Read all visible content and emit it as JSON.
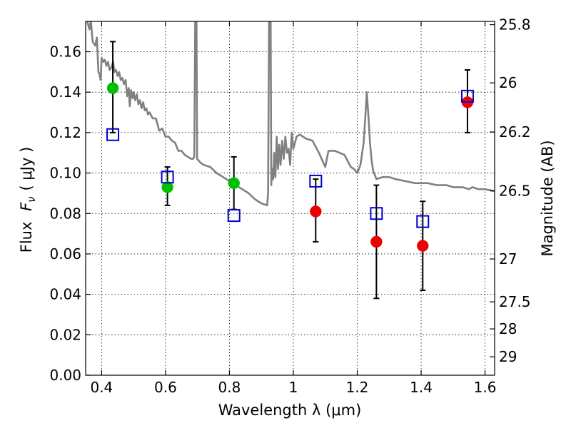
{
  "chart_data": {
    "type": "scatter",
    "xlabel": "Wavelength  λ (μm)",
    "ylabel_prefix": "Flux",
    "ylabel_symbol": "F",
    "ylabel_subscript": "ν",
    "ylabel_unit": "( μJy )",
    "y2label": "Magnitude (AB)",
    "xlim": [
      0.35,
      1.63
    ],
    "ylim": [
      0.0,
      0.175
    ],
    "grid": true,
    "x_ticks": [
      {
        "value": 0.4,
        "label": "0.4"
      },
      {
        "value": 0.6,
        "label": "0.6"
      },
      {
        "value": 0.8,
        "label": "0.8"
      },
      {
        "value": 1.0,
        "label": "1"
      },
      {
        "value": 1.2,
        "label": "1.2"
      },
      {
        "value": 1.4,
        "label": "1.4"
      },
      {
        "value": 1.6,
        "label": "1.6"
      }
    ],
    "y_ticks": [
      {
        "value": 0.0,
        "label": "0.00"
      },
      {
        "value": 0.02,
        "label": "0.02"
      },
      {
        "value": 0.04,
        "label": "0.04"
      },
      {
        "value": 0.06,
        "label": "0.06"
      },
      {
        "value": 0.08,
        "label": "0.08"
      },
      {
        "value": 0.1,
        "label": "0.10"
      },
      {
        "value": 0.12,
        "label": "0.12"
      },
      {
        "value": 0.14,
        "label": "0.14"
      },
      {
        "value": 0.16,
        "label": "0.16"
      }
    ],
    "y2_ticks": [
      {
        "flux": 0.1734,
        "label": "25.8"
      },
      {
        "flux": 0.1446,
        "label": "26"
      },
      {
        "flux": 0.1203,
        "label": "26.2"
      },
      {
        "flux": 0.0912,
        "label": "26.5"
      },
      {
        "flux": 0.0575,
        "label": "27"
      },
      {
        "flux": 0.0363,
        "label": "27.5"
      },
      {
        "flux": 0.0229,
        "label": "28"
      },
      {
        "flux": 0.0091,
        "label": "29"
      }
    ],
    "model_spectrum": {
      "color": "#808080",
      "points": [
        [
          0.355,
          0.175
        ],
        [
          0.362,
          0.171
        ],
        [
          0.366,
          0.176
        ],
        [
          0.372,
          0.165
        ],
        [
          0.38,
          0.163
        ],
        [
          0.385,
          0.167
        ],
        [
          0.39,
          0.15
        ],
        [
          0.393,
          0.149
        ],
        [
          0.397,
          0.146
        ],
        [
          0.4,
          0.157
        ],
        [
          0.405,
          0.155
        ],
        [
          0.41,
          0.156
        ],
        [
          0.415,
          0.153
        ],
        [
          0.42,
          0.155
        ],
        [
          0.425,
          0.151
        ],
        [
          0.43,
          0.152
        ],
        [
          0.436,
          0.155
        ],
        [
          0.44,
          0.15
        ],
        [
          0.445,
          0.151
        ],
        [
          0.45,
          0.148
        ],
        [
          0.455,
          0.15
        ],
        [
          0.46,
          0.146
        ],
        [
          0.465,
          0.147
        ],
        [
          0.47,
          0.144
        ],
        [
          0.475,
          0.146
        ],
        [
          0.48,
          0.138
        ],
        [
          0.485,
          0.142
        ],
        [
          0.488,
          0.133
        ],
        [
          0.492,
          0.141
        ],
        [
          0.497,
          0.137
        ],
        [
          0.5,
          0.14
        ],
        [
          0.505,
          0.136
        ],
        [
          0.51,
          0.139
        ],
        [
          0.515,
          0.134
        ],
        [
          0.52,
          0.136
        ],
        [
          0.525,
          0.132
        ],
        [
          0.53,
          0.135
        ],
        [
          0.535,
          0.131
        ],
        [
          0.54,
          0.132
        ],
        [
          0.545,
          0.129
        ],
        [
          0.55,
          0.13
        ],
        [
          0.56,
          0.127
        ],
        [
          0.57,
          0.127
        ],
        [
          0.58,
          0.121
        ],
        [
          0.59,
          0.122
        ],
        [
          0.6,
          0.118
        ],
        [
          0.61,
          0.118
        ],
        [
          0.62,
          0.116
        ],
        [
          0.63,
          0.115
        ],
        [
          0.64,
          0.111
        ],
        [
          0.65,
          0.111
        ],
        [
          0.66,
          0.109
        ],
        [
          0.67,
          0.108
        ],
        [
          0.68,
          0.107
        ],
        [
          0.686,
          0.107
        ],
        [
          0.69,
          0.108
        ],
        [
          0.693,
          0.175
        ],
        [
          0.697,
          0.175
        ],
        [
          0.699,
          0.107
        ],
        [
          0.71,
          0.105
        ],
        [
          0.72,
          0.104
        ],
        [
          0.74,
          0.103
        ],
        [
          0.76,
          0.1
        ],
        [
          0.78,
          0.098
        ],
        [
          0.8,
          0.096
        ],
        [
          0.82,
          0.094
        ],
        [
          0.84,
          0.092
        ],
        [
          0.86,
          0.09
        ],
        [
          0.88,
          0.087
        ],
        [
          0.9,
          0.085
        ],
        [
          0.918,
          0.084
        ],
        [
          0.921,
          0.09
        ],
        [
          0.924,
          0.175
        ],
        [
          0.929,
          0.175
        ],
        [
          0.931,
          0.094
        ],
        [
          0.934,
          0.102
        ],
        [
          0.937,
          0.097
        ],
        [
          0.94,
          0.11
        ],
        [
          0.944,
          0.098
        ],
        [
          0.948,
          0.118
        ],
        [
          0.952,
          0.102
        ],
        [
          0.956,
          0.114
        ],
        [
          0.96,
          0.104
        ],
        [
          0.965,
          0.116
        ],
        [
          0.97,
          0.107
        ],
        [
          0.975,
          0.118
        ],
        [
          0.98,
          0.11
        ],
        [
          0.985,
          0.112
        ],
        [
          0.99,
          0.104
        ],
        [
          0.995,
          0.12
        ],
        [
          1.0,
          0.112
        ],
        [
          1.01,
          0.118
        ],
        [
          1.02,
          0.119
        ],
        [
          1.04,
          0.117
        ],
        [
          1.06,
          0.116
        ],
        [
          1.08,
          0.11
        ],
        [
          1.1,
          0.103
        ],
        [
          1.11,
          0.111
        ],
        [
          1.13,
          0.111
        ],
        [
          1.16,
          0.109
        ],
        [
          1.17,
          0.106
        ],
        [
          1.18,
          0.103
        ],
        [
          1.19,
          0.102
        ],
        [
          1.2,
          0.1
        ],
        [
          1.21,
          0.104
        ],
        [
          1.22,
          0.115
        ],
        [
          1.225,
          0.127
        ],
        [
          1.23,
          0.14
        ],
        [
          1.235,
          0.128
        ],
        [
          1.24,
          0.115
        ],
        [
          1.245,
          0.106
        ],
        [
          1.25,
          0.101
        ],
        [
          1.26,
          0.097
        ],
        [
          1.28,
          0.098
        ],
        [
          1.3,
          0.098
        ],
        [
          1.32,
          0.097
        ],
        [
          1.35,
          0.096
        ],
        [
          1.38,
          0.095
        ],
        [
          1.4,
          0.095
        ],
        [
          1.42,
          0.095
        ],
        [
          1.45,
          0.094
        ],
        [
          1.48,
          0.094
        ],
        [
          1.5,
          0.093
        ],
        [
          1.53,
          0.093
        ],
        [
          1.55,
          0.092
        ],
        [
          1.56,
          0.093
        ],
        [
          1.58,
          0.092
        ],
        [
          1.6,
          0.092
        ],
        [
          1.63,
          0.091
        ]
      ]
    },
    "model_fluxes": {
      "color": "#0000cc",
      "points": [
        {
          "x": 0.435,
          "y": 0.119
        },
        {
          "x": 0.606,
          "y": 0.098
        },
        {
          "x": 0.814,
          "y": 0.079
        },
        {
          "x": 1.07,
          "y": 0.096
        },
        {
          "x": 1.26,
          "y": 0.08
        },
        {
          "x": 1.405,
          "y": 0.076
        },
        {
          "x": 1.545,
          "y": 0.138
        }
      ]
    },
    "observed": {
      "green": "#00c000",
      "red": "#ee0000",
      "points": [
        {
          "x": 0.435,
          "y": 0.142,
          "yerr_low": 0.12,
          "yerr_high": 0.165,
          "color": "green"
        },
        {
          "x": 0.606,
          "y": 0.093,
          "yerr_low": 0.084,
          "yerr_high": 0.103,
          "color": "green"
        },
        {
          "x": 0.814,
          "y": 0.095,
          "yerr_low": 0.082,
          "yerr_high": 0.108,
          "color": "green"
        },
        {
          "x": 1.07,
          "y": 0.081,
          "yerr_low": 0.066,
          "yerr_high": 0.097,
          "color": "red"
        },
        {
          "x": 1.26,
          "y": 0.066,
          "yerr_low": 0.038,
          "yerr_high": 0.094,
          "color": "red"
        },
        {
          "x": 1.405,
          "y": 0.064,
          "yerr_low": 0.042,
          "yerr_high": 0.086,
          "color": "red"
        },
        {
          "x": 1.545,
          "y": 0.135,
          "yerr_low": 0.12,
          "yerr_high": 0.151,
          "color": "red"
        }
      ]
    }
  }
}
